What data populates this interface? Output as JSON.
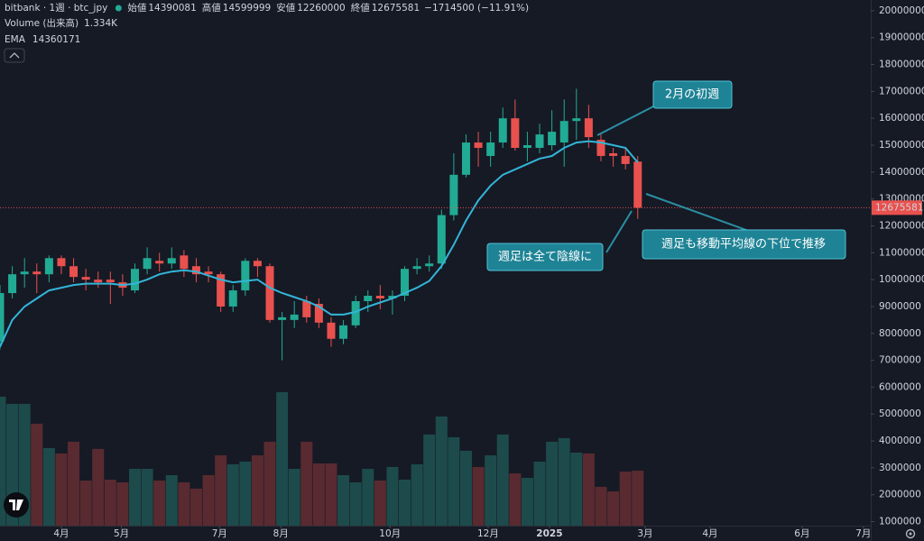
{
  "chart_data": {
    "type": "candlestick",
    "header": {
      "symbol": "bitbank · 1週 · btc_jpy",
      "open_label": "始値",
      "high_label": "高値",
      "low_label": "安値",
      "close_label": "終値",
      "change": "−1714500 (−11.91%)",
      "volume_name": "Volume (出来高)",
      "volume_value": "1.334K"
    },
    "up_color": "#22ab94",
    "down_color": "#e8514e",
    "candles": {
      "open": [
        7700000,
        9500000,
        10200000,
        10300000,
        10200000,
        10800000,
        10500000,
        10100000,
        10000000,
        10000000,
        9900000,
        9600000,
        10400000,
        10700000,
        10600000,
        10900000,
        10500000,
        10300000,
        10200000,
        9000000,
        9600000,
        10700000,
        10500000,
        8500000,
        8500000,
        9200000,
        9100000,
        8400000,
        7800000,
        8300000,
        9200000,
        9400000,
        9300000,
        9400000,
        10400000,
        10500000,
        10600000,
        12400000,
        13900000,
        15100000,
        14600000,
        15100000,
        16000000,
        14900000,
        14900000,
        15000000,
        15100000,
        15900000,
        16000000,
        15200000,
        14700000,
        14600000,
        14390081
      ],
      "high": [
        9800000,
        10500000,
        10800000,
        10600000,
        10900000,
        10900000,
        10800000,
        10400000,
        10300000,
        10300000,
        10200000,
        10600000,
        11200000,
        11000000,
        11200000,
        11100000,
        10800000,
        10500000,
        10300000,
        9800000,
        10800000,
        10800000,
        10600000,
        8800000,
        9200000,
        9400000,
        9300000,
        8600000,
        8500000,
        9400000,
        9600000,
        9800000,
        9600000,
        10500000,
        10800000,
        10900000,
        12600000,
        14700000,
        15400000,
        15500000,
        15500000,
        16400000,
        16700000,
        15500000,
        15800000,
        16300000,
        16700000,
        17100000,
        16500000,
        15400000,
        14900000,
        14900000,
        14599999
      ],
      "low": [
        7400000,
        9300000,
        9700000,
        9500000,
        9900000,
        10200000,
        9900000,
        9600000,
        9700000,
        9100000,
        9400000,
        9500000,
        10200000,
        10300000,
        10400000,
        10100000,
        9900000,
        9900000,
        8800000,
        8800000,
        9400000,
        10100000,
        8400000,
        7000000,
        8200000,
        8400000,
        8200000,
        7500000,
        7600000,
        8200000,
        8800000,
        8900000,
        8700000,
        9200000,
        10200000,
        10300000,
        10400000,
        12200000,
        13800000,
        14200000,
        14200000,
        14900000,
        14800000,
        14400000,
        14700000,
        14800000,
        14200000,
        15200000,
        14900000,
        14400000,
        14200000,
        14100000,
        12260000
      ],
      "close": [
        9500000,
        10200000,
        10300000,
        10200000,
        10800000,
        10500000,
        10100000,
        10000000,
        9900000,
        9900000,
        9700000,
        10400000,
        10800000,
        10600000,
        10800000,
        10400000,
        10200000,
        10200000,
        9000000,
        9600000,
        10700000,
        10500000,
        8500000,
        8600000,
        8700000,
        8600000,
        8400000,
        7800000,
        8300000,
        9200000,
        9400000,
        9300000,
        9400000,
        10400000,
        10500000,
        10600000,
        12400000,
        13900000,
        15100000,
        14900000,
        15100000,
        16000000,
        14900000,
        15000000,
        15400000,
        15500000,
        15900000,
        16000000,
        15300000,
        14600000,
        14600000,
        14300000,
        12675581
      ]
    },
    "volume": {
      "up_color": "#1d4a4b",
      "down_color": "#5a2a31",
      "values": [
        3132,
        2957,
        2957,
        2475,
        1883,
        1752,
        2037,
        1095,
        1862,
        1117,
        1051,
        1380,
        1380,
        1095,
        1226,
        1051,
        898,
        1226,
        1708,
        1489,
        1555,
        1708,
        2037,
        3241,
        1380,
        2037,
        1511,
        1511,
        1226,
        1051,
        1380,
        1095,
        1424,
        1117,
        1489,
        2212,
        2650,
        2146,
        1818,
        1424,
        1708,
        2212,
        1270,
        1161,
        1555,
        2037,
        2124,
        1774,
        1752,
        942,
        832,
        1314,
        1334
      ]
    },
    "ema": {
      "name": "EMA",
      "color": "#33b5d8",
      "values": [
        7500000,
        8500000,
        9000000,
        9300000,
        9600000,
        9700000,
        9800000,
        9850000,
        9850000,
        9850000,
        9800000,
        9850000,
        10000000,
        10200000,
        10300000,
        10350000,
        10300000,
        10150000,
        10000000,
        9900000,
        9950000,
        10000000,
        9700000,
        9500000,
        9350000,
        9200000,
        9000000,
        8700000,
        8700000,
        8800000,
        9000000,
        9150000,
        9300000,
        9500000,
        9700000,
        9950000,
        10500000,
        11300000,
        12200000,
        12950000,
        13500000,
        13900000,
        14100000,
        14300000,
        14500000,
        14600000,
        14900000,
        15100000,
        15150000,
        15100000,
        15000000,
        14900000,
        14360171
      ]
    },
    "xlim": [
      0,
      71
    ],
    "xticks": [
      {
        "value": 5,
        "label": "4月"
      },
      {
        "value": 9.9,
        "label": "5月"
      },
      {
        "value": 17.9,
        "label": "7月"
      },
      {
        "value": 22.9,
        "label": "8月"
      },
      {
        "value": 31.8,
        "label": "10月"
      },
      {
        "value": 39.8,
        "label": "12月"
      },
      {
        "value": 44.8,
        "label": "2025"
      },
      {
        "value": 52.6,
        "label": "3月"
      },
      {
        "value": 57.9,
        "label": "4月"
      },
      {
        "value": 65.4,
        "label": "6月"
      },
      {
        "value": 70.4,
        "label": "7月"
      }
    ],
    "ylim": [
      850000,
      20400000
    ],
    "yticks": [
      1000000,
      2000000,
      3000000,
      4000000,
      5000000,
      6000000,
      7000000,
      8000000,
      9000000,
      10000000,
      11000000,
      12000000,
      13000000,
      14000000,
      15000000,
      16000000,
      17000000,
      18000000,
      19000000,
      20000000
    ],
    "grid": false,
    "annotations": [
      {
        "text": "2月の初週"
      },
      {
        "text": "週足は全て陰線に"
      },
      {
        "text": "週足も移動平均線の下位で推移"
      }
    ]
  }
}
